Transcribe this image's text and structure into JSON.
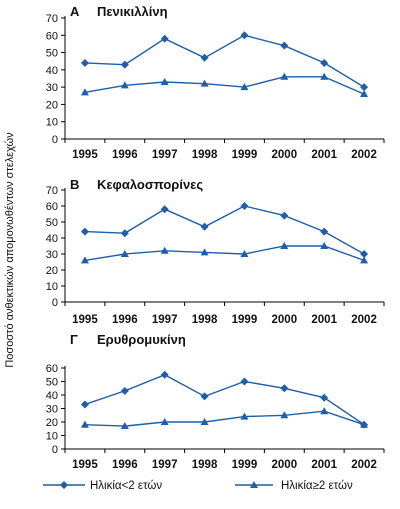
{
  "ylabel": "Ποσοστό ανθεκτικών απομονωθέντων στελεχών",
  "colors": {
    "series": "#1f5fa8",
    "axis": "#000000"
  },
  "legend": {
    "placement": "bottom"
  },
  "chart_data": [
    {
      "type": "line",
      "letter": "A",
      "title": "Πενικιλλίνη",
      "categories": [
        "1995",
        "1996",
        "1997",
        "1998",
        "1999",
        "2000",
        "2001",
        "2002"
      ],
      "ylim": [
        0,
        70
      ],
      "yticks": [
        0,
        10,
        20,
        30,
        40,
        50,
        60,
        70
      ],
      "grid": false,
      "series": [
        {
          "name": "Ηλικία<2 ετών",
          "marker": "diamond",
          "values": [
            44,
            43,
            58,
            47,
            60,
            54,
            44,
            30
          ]
        },
        {
          "name": "Ηλικία≥2 ετών",
          "marker": "triangle",
          "values": [
            27,
            31,
            33,
            32,
            30,
            36,
            36,
            26
          ]
        }
      ]
    },
    {
      "type": "line",
      "letter": "B",
      "title": "Κεφαλοσπορίνες",
      "categories": [
        "1995",
        "1996",
        "1997",
        "1998",
        "1999",
        "2000",
        "2001",
        "2002"
      ],
      "ylim": [
        0,
        70
      ],
      "yticks": [
        0,
        10,
        20,
        30,
        40,
        50,
        60,
        70
      ],
      "grid": false,
      "series": [
        {
          "name": "Ηλικία<2 ετών",
          "marker": "diamond",
          "values": [
            44,
            43,
            58,
            47,
            60,
            54,
            44,
            30
          ]
        },
        {
          "name": "Ηλικία≥2 ετών",
          "marker": "triangle",
          "values": [
            26,
            30,
            32,
            31,
            30,
            35,
            35,
            26
          ]
        }
      ]
    },
    {
      "type": "line",
      "letter": "Γ",
      "title": "Ερυθρομυκίνη",
      "categories": [
        "1995",
        "1996",
        "1997",
        "1998",
        "1999",
        "2000",
        "2001",
        "2002"
      ],
      "ylim": [
        0,
        60
      ],
      "yticks": [
        0,
        10,
        20,
        30,
        40,
        50,
        60
      ],
      "grid": false,
      "series": [
        {
          "name": "Ηλικία<2 ετών",
          "marker": "diamond",
          "values": [
            33,
            43,
            55,
            39,
            50,
            45,
            38,
            18
          ]
        },
        {
          "name": "Ηλικία≥2 ετών",
          "marker": "triangle",
          "values": [
            18,
            17,
            20,
            20,
            24,
            25,
            28,
            18
          ]
        }
      ]
    }
  ]
}
